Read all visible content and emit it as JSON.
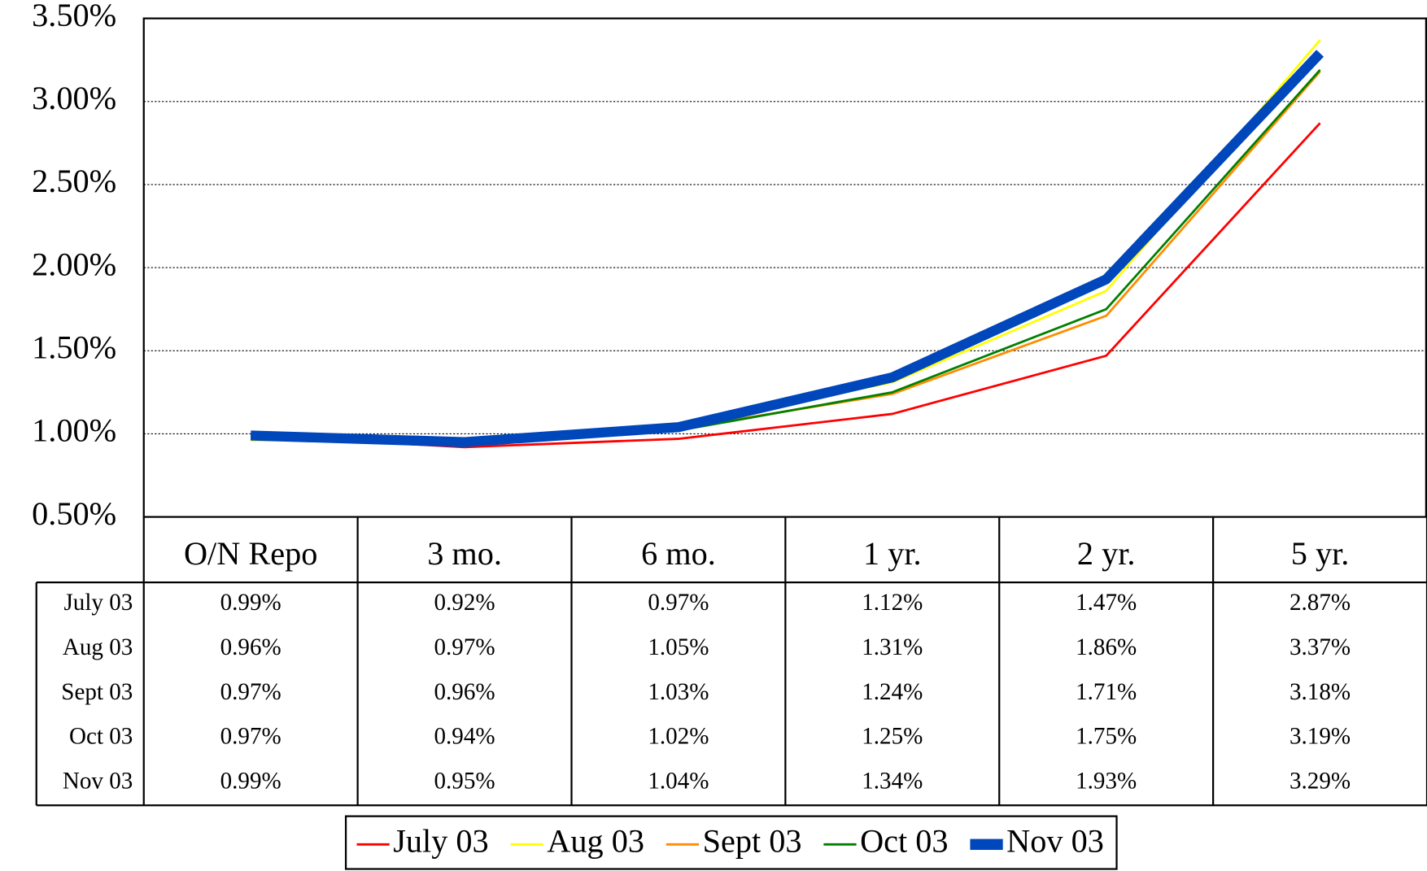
{
  "chart_data": {
    "type": "line",
    "categories": [
      "O/N Repo",
      "3 mo.",
      "6 mo.",
      "1 yr.",
      "2 yr.",
      "5 yr."
    ],
    "series": [
      {
        "name": "July 03",
        "color": "#ff0000",
        "values": [
          0.99,
          0.92,
          0.97,
          1.12,
          1.47,
          2.87
        ],
        "value_labels": [
          "0.99%",
          "0.92%",
          "0.97%",
          "1.12%",
          "1.47%",
          "2.87%"
        ]
      },
      {
        "name": "Aug 03",
        "color": "#ffff00",
        "values": [
          0.96,
          0.97,
          1.05,
          1.31,
          1.86,
          3.37
        ],
        "value_labels": [
          "0.96%",
          "0.97%",
          "1.05%",
          "1.31%",
          "1.86%",
          "3.37%"
        ]
      },
      {
        "name": "Sept 03",
        "color": "#ff8c00",
        "values": [
          0.97,
          0.96,
          1.03,
          1.24,
          1.71,
          3.18
        ],
        "value_labels": [
          "0.97%",
          "0.96%",
          "1.03%",
          "1.24%",
          "1.71%",
          "3.18%"
        ]
      },
      {
        "name": "Oct 03",
        "color": "#008000",
        "values": [
          0.97,
          0.94,
          1.02,
          1.25,
          1.75,
          3.19
        ],
        "value_labels": [
          "0.97%",
          "0.94%",
          "1.02%",
          "1.25%",
          "1.75%",
          "3.19%"
        ]
      },
      {
        "name": "Nov 03",
        "color": "#0047bb",
        "values": [
          0.99,
          0.95,
          1.04,
          1.34,
          1.93,
          3.29
        ],
        "value_labels": [
          "0.99%",
          "0.95%",
          "1.04%",
          "1.34%",
          "1.93%",
          "3.29%"
        ]
      }
    ],
    "ylim": [
      0.5,
      3.5
    ],
    "yticks": [
      {
        "value": 0.5,
        "label": "0.50%"
      },
      {
        "value": 1,
        "label": "1.00%"
      },
      {
        "value": 1.5,
        "label": "1.50%"
      },
      {
        "value": 2,
        "label": "2.00%"
      },
      {
        "value": 2.5,
        "label": "2.50%"
      },
      {
        "value": 3,
        "label": "3.00%"
      },
      {
        "value": 3.5,
        "label": "3.50%"
      }
    ],
    "grid": true,
    "legend": "bottom",
    "data_table": true
  }
}
